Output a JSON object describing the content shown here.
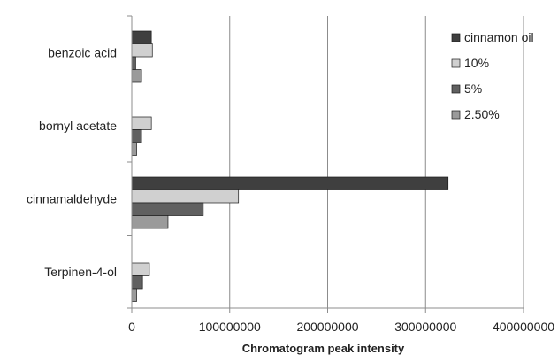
{
  "chart_data": {
    "type": "bar",
    "orientation": "horizontal",
    "title": "",
    "xlabel": "Chromatogram peak intensity",
    "ylabel": "",
    "categories": [
      "benzoic acid",
      "bornyl acetate",
      "cinnamaldehyde",
      "Terpinen-4-ol"
    ],
    "xlim": [
      0,
      400000000
    ],
    "x_ticks": [
      "0",
      "100000000",
      "200000000",
      "300000000",
      "400000000"
    ],
    "grid": "vertical",
    "legend_position": "right",
    "series": [
      {
        "name": "cinnamon oil",
        "color": "#3f3f3f",
        "values": [
          20000000,
          0,
          323000000,
          0
        ]
      },
      {
        "name": "10%",
        "color": "#d0d0d0",
        "values": [
          21000000,
          20000000,
          109000000,
          18000000
        ]
      },
      {
        "name": "5%",
        "color": "#606060",
        "values": [
          4000000,
          10000000,
          73000000,
          11000000
        ]
      },
      {
        "name": "2.50%",
        "color": "#9a9a9a",
        "values": [
          10000000,
          5000000,
          37000000,
          5000000
        ]
      }
    ]
  }
}
